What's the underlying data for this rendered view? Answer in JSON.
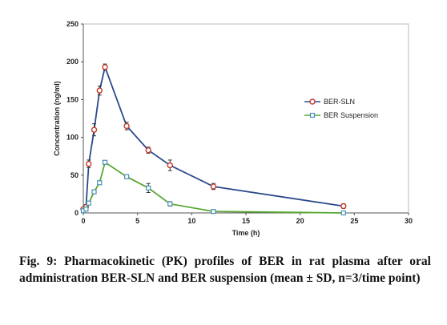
{
  "chart_data": {
    "type": "line",
    "xlabel": "Time (h)",
    "ylabel": "Concentration (ng/ml)",
    "xlim": [
      0,
      30
    ],
    "ylim": [
      0,
      250
    ],
    "xticks": [
      0,
      5,
      10,
      15,
      20,
      25,
      30
    ],
    "yticks": [
      0,
      50,
      100,
      150,
      200,
      250
    ],
    "grid": false,
    "legend_position": "right",
    "series": [
      {
        "name": "BER-SLN",
        "color": "#2b4a8c",
        "marker_color": "#c0392b",
        "x": [
          0,
          0.25,
          0.5,
          1,
          1.5,
          2,
          4,
          6,
          8,
          12,
          24
        ],
        "y": [
          5,
          8,
          65,
          110,
          162,
          193,
          115,
          83,
          63,
          35,
          9
        ],
        "err": [
          2,
          3,
          5,
          8,
          6,
          4,
          5,
          4,
          7,
          4,
          3
        ]
      },
      {
        "name": "BER Suspension",
        "color": "#5aa832",
        "marker_color": "#4a8fb8",
        "x": [
          0,
          0.25,
          0.5,
          1,
          1.5,
          2,
          4,
          6,
          8,
          12,
          24
        ],
        "y": [
          3,
          5,
          13,
          28,
          40,
          67,
          48,
          33,
          12,
          2,
          0
        ],
        "err": [
          1,
          1,
          2,
          2,
          2,
          2,
          2,
          6,
          3,
          1,
          0
        ]
      }
    ]
  },
  "caption": "Fig. 9: Pharmacokinetic (PK) profiles of BER in rat plasma after oral administration BER-SLN and BER suspension (mean ± SD, n=3/time point)"
}
